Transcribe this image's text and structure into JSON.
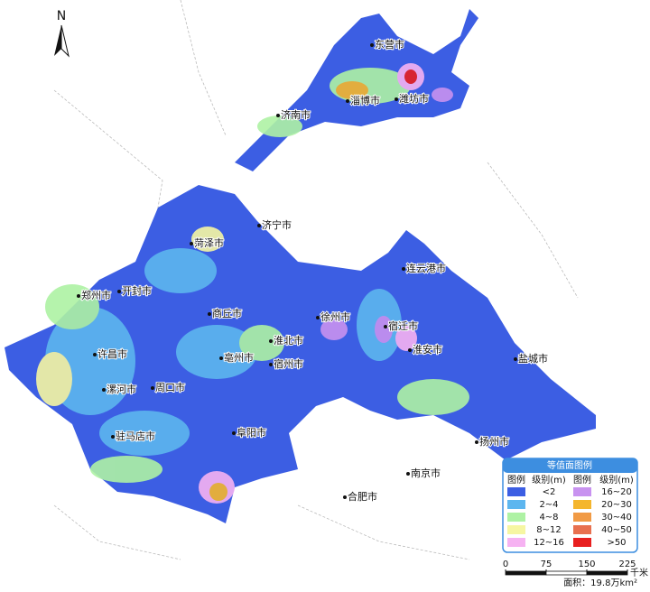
{
  "north": "N",
  "cities": [
    "东营市",
    "淄博市",
    "潍坊市",
    "济南市",
    "济宁市",
    "菏泽市",
    "开封市",
    "郑州市",
    "商丘市",
    "徐州市",
    "连云港市",
    "宿迁市",
    "淮北市",
    "宿州市",
    "淮安市",
    "盐城市",
    "许昌市",
    "亳州市",
    "漯河市",
    "周口市",
    "阜阳市",
    "驻马店市",
    "扬州市",
    "南京市",
    "合肥市"
  ],
  "legend": {
    "title": "等值面图例",
    "headers": [
      "图例",
      "级别(m)",
      "图例",
      "级别(m)"
    ],
    "items": [
      {
        "label": "<2",
        "color": "#3c5ee3"
      },
      {
        "label": "2~4",
        "color": "#5db6ef"
      },
      {
        "label": "4~8",
        "color": "#aef2a4"
      },
      {
        "label": "8~12",
        "color": "#f6f6a2"
      },
      {
        "label": "12~16",
        "color": "#f6b2f2"
      },
      {
        "label": "16~20",
        "color": "#c892f0"
      },
      {
        "label": "20~30",
        "color": "#f4b62e"
      },
      {
        "label": "30~40",
        "color": "#f19a45"
      },
      {
        "label": "40~50",
        "color": "#e8704f"
      },
      {
        "label": ">50",
        "color": "#e81f1f"
      }
    ]
  },
  "scale_bar": {
    "ticks": [
      0,
      75,
      150,
      225
    ],
    "unit": "千米"
  },
  "area_note": "面积：19.8万km²"
}
